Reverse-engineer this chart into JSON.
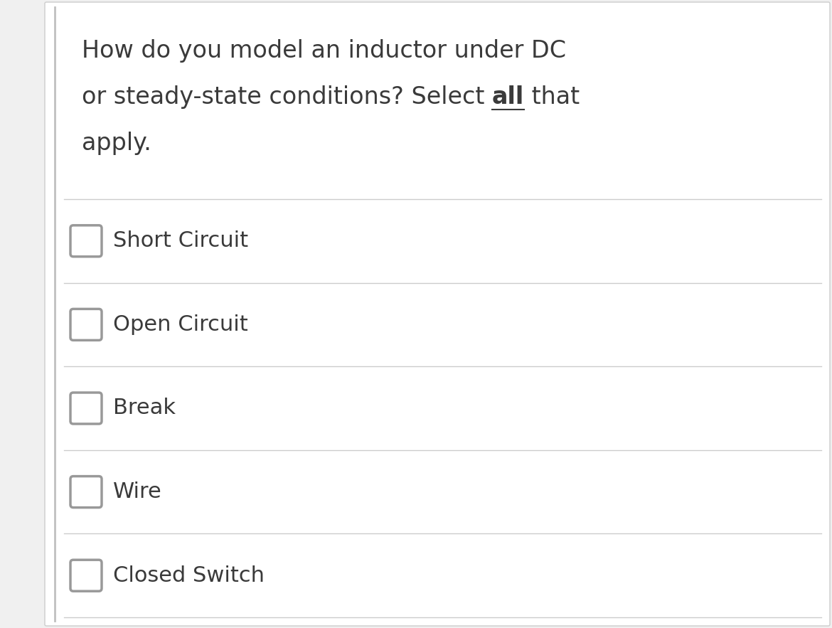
{
  "background_color": "#f0f0f0",
  "card_color": "#ffffff",
  "border_color": "#cccccc",
  "left_border_color": "#c0c0c0",
  "question_line1": "How do you model an inductor under DC",
  "question_line2_pre": "or steady-state conditions? Select ",
  "question_line2_bold": "all",
  "question_line2_post": " that",
  "question_line3": "apply.",
  "options": [
    "Short Circuit",
    "Open Circuit",
    "Break",
    "Wire",
    "Closed Switch"
  ],
  "text_color": "#3a3a3a",
  "checkbox_color": "#999999",
  "divider_color": "#cccccc",
  "question_font_size": 24,
  "option_font_size": 22
}
